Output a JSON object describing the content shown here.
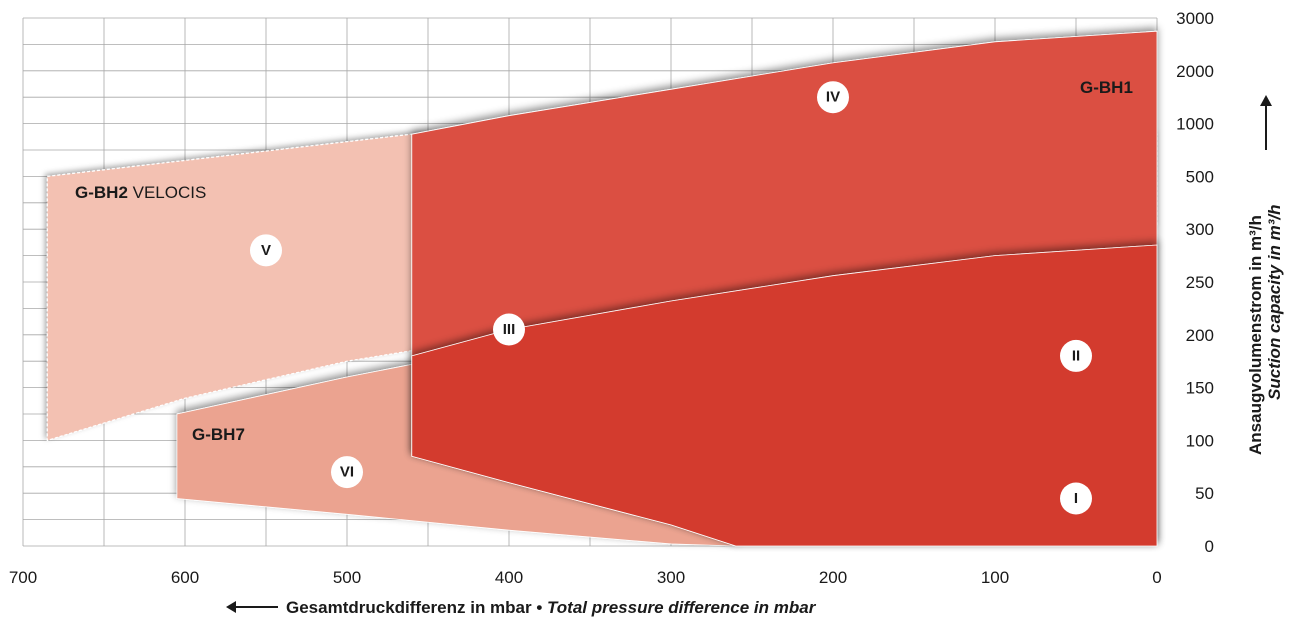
{
  "chart_data": {
    "type": "area",
    "x_axis": {
      "label": "Gesamtdruckdifferenz in mbar",
      "label_en": "Total pressure difference in mbar",
      "separator": "•",
      "ticks": [
        "700",
        "600",
        "500",
        "400",
        "300",
        "200",
        "100",
        "0"
      ],
      "range": [
        700,
        0
      ],
      "reversed": true,
      "arrow": "left"
    },
    "y_axis": {
      "label": "Ansaugvolumenstrom in m³/h",
      "label_en": "Suction capacity in m³/h",
      "position": "right",
      "arrow": "up",
      "ticks": [
        "0",
        "50",
        "100",
        "150",
        "200",
        "250",
        "300",
        "500",
        "1000",
        "2000",
        "3000"
      ],
      "scale": "non-linear (0–300 linear, then 500, 1000, 2000, 3000)"
    },
    "grid": true,
    "series": [
      {
        "name": "G-BH2 VELOCIS",
        "name_bold": "G-BH2",
        "name_rest": " VELOCIS",
        "color": "#f3c1b2",
        "upper": [
          [
            685,
            500
          ],
          [
            460,
            900
          ],
          [
            0,
            900
          ]
        ],
        "lower": [
          [
            685,
            100
          ],
          [
            600,
            140
          ],
          [
            500,
            175
          ],
          [
            400,
            200
          ],
          [
            300,
            230
          ],
          [
            200,
            255
          ],
          [
            100,
            280
          ],
          [
            0,
            310
          ]
        ]
      },
      {
        "name": "G-BH7",
        "color": "#eba390",
        "upper": [
          [
            605,
            125
          ],
          [
            500,
            160
          ],
          [
            400,
            190
          ],
          [
            300,
            220
          ],
          [
            200,
            250
          ],
          [
            100,
            272
          ],
          [
            0,
            285
          ]
        ],
        "lower": [
          [
            605,
            45
          ],
          [
            500,
            30
          ],
          [
            400,
            15
          ],
          [
            300,
            2
          ],
          [
            260,
            0
          ]
        ]
      },
      {
        "name": "G-BH1",
        "color": "#db4f43",
        "upper": [
          [
            460,
            900
          ],
          [
            400,
            1150
          ],
          [
            300,
            1650
          ],
          [
            200,
            2150
          ],
          [
            100,
            2550
          ],
          [
            0,
            2750
          ]
        ],
        "lower": [
          [
            460,
            85
          ],
          [
            400,
            60
          ],
          [
            300,
            20
          ],
          [
            260,
            0
          ],
          [
            0,
            0
          ]
        ]
      },
      {
        "name": "",
        "color": "#d33a2e",
        "upper": [
          [
            460,
            180
          ],
          [
            400,
            205
          ],
          [
            300,
            232
          ],
          [
            200,
            256
          ],
          [
            100,
            275
          ],
          [
            0,
            285
          ]
        ],
        "lower": [
          [
            460,
            85
          ],
          [
            400,
            60
          ],
          [
            300,
            20
          ],
          [
            260,
            0
          ],
          [
            0,
            0
          ]
        ]
      }
    ],
    "region_markers": [
      {
        "id": "I",
        "x": 50,
        "y": 45
      },
      {
        "id": "II",
        "x": 50,
        "y": 180
      },
      {
        "id": "III",
        "x": 400,
        "y": 205
      },
      {
        "id": "IV",
        "x": 200,
        "y": 1500
      },
      {
        "id": "V",
        "x": 550,
        "y": 280
      },
      {
        "id": "VI",
        "x": 500,
        "y": 70
      }
    ]
  }
}
